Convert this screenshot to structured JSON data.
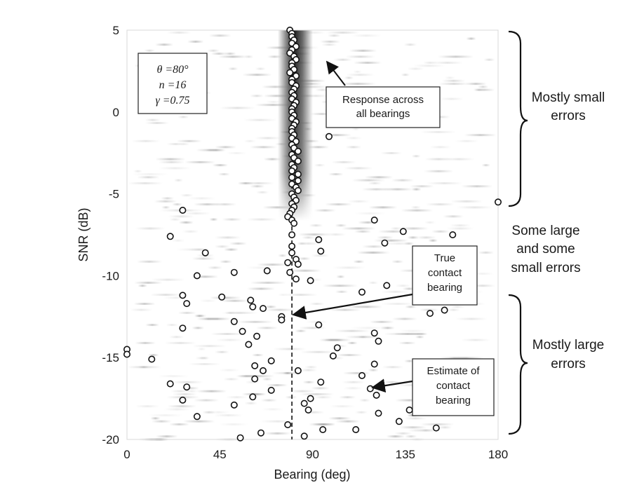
{
  "chart_data": {
    "type": "scatter",
    "xlabel": "Bearing (deg)",
    "ylabel": "SNR (dB)",
    "xlim": [
      0,
      180
    ],
    "ylim": [
      -20,
      5
    ],
    "xticks": [
      0,
      45,
      90,
      135,
      180
    ],
    "yticks": [
      5,
      0,
      -5,
      -10,
      -15,
      -20
    ],
    "true_bearing": 80,
    "params": [
      "θ =80°",
      "n =16",
      "γ =0.75"
    ],
    "annotations": {
      "response": "Response across all bearings",
      "true_bearing": "True contact bearing",
      "estimate": "Estimate of contact bearing"
    },
    "regions": [
      {
        "label": "Mostly small errors",
        "from": 5,
        "to": -5.7
      },
      {
        "label": "Some large and some small errors",
        "from": -5.7,
        "to": -11.3
      },
      {
        "label": "Mostly large errors",
        "from": -11.3,
        "to": -20
      }
    ],
    "points": [
      [
        79,
        5
      ],
      [
        80,
        4.8
      ],
      [
        80,
        4.6
      ],
      [
        81,
        4.4
      ],
      [
        80,
        4.2
      ],
      [
        82,
        4.0
      ],
      [
        80,
        3.8
      ],
      [
        79,
        3.6
      ],
      [
        81,
        3.4
      ],
      [
        82,
        3.2
      ],
      [
        80,
        3.0
      ],
      [
        80,
        2.8
      ],
      [
        81,
        2.6
      ],
      [
        79,
        2.4
      ],
      [
        82,
        2.2
      ],
      [
        80,
        2.0
      ],
      [
        80,
        1.8
      ],
      [
        82,
        1.6
      ],
      [
        81,
        1.4
      ],
      [
        80,
        1.2
      ],
      [
        81,
        1.0
      ],
      [
        80,
        0.8
      ],
      [
        82,
        0.6
      ],
      [
        81,
        0.4
      ],
      [
        80,
        0.2
      ],
      [
        80,
        0.0
      ],
      [
        81,
        -0.2
      ],
      [
        80,
        -0.4
      ],
      [
        82,
        -0.6
      ],
      [
        81,
        -0.8
      ],
      [
        80,
        -1.0
      ],
      [
        80,
        -1.2
      ],
      [
        81,
        -1.4
      ],
      [
        80,
        -1.6
      ],
      [
        82,
        -1.8
      ],
      [
        80,
        -2.0
      ],
      [
        81,
        -2.2
      ],
      [
        83,
        -2.4
      ],
      [
        80,
        -2.6
      ],
      [
        81,
        -2.8
      ],
      [
        83,
        -3.0
      ],
      [
        80,
        -3.2
      ],
      [
        81,
        -3.4
      ],
      [
        80,
        -3.6
      ],
      [
        83,
        -3.8
      ],
      [
        80,
        -4.0
      ],
      [
        83,
        -4.2
      ],
      [
        80,
        -4.4
      ],
      [
        82,
        -4.6
      ],
      [
        83,
        -4.8
      ],
      [
        80,
        -5.0
      ],
      [
        81,
        -5.2
      ],
      [
        82,
        -5.4
      ],
      [
        80,
        -5.6
      ],
      [
        81,
        -5.8
      ],
      [
        80,
        -6.0
      ],
      [
        79,
        -6.2
      ],
      [
        78,
        -6.4
      ],
      [
        80,
        -6.6
      ],
      [
        81,
        -6.8
      ],
      [
        80,
        -7.5
      ],
      [
        80,
        -8.2
      ],
      [
        80,
        -8.6
      ],
      [
        78,
        -9.2
      ],
      [
        82,
        -9.0
      ],
      [
        83,
        -9.3
      ],
      [
        79,
        -9.8
      ],
      [
        82,
        -10.2
      ],
      [
        89,
        -10.3
      ],
      [
        75,
        -12.5
      ],
      [
        75,
        -12.7
      ],
      [
        98,
        -1.5
      ],
      [
        180,
        -5.5
      ],
      [
        120,
        -6.6
      ],
      [
        27,
        -6
      ],
      [
        21,
        -7.6
      ],
      [
        38,
        -8.6
      ],
      [
        34,
        -10
      ],
      [
        52,
        -9.8
      ],
      [
        68,
        -9.7
      ],
      [
        93,
        -7.8
      ],
      [
        94,
        -8.5
      ],
      [
        125,
        -8
      ],
      [
        134,
        -7.3
      ],
      [
        158,
        -7.5
      ],
      [
        114,
        -11
      ],
      [
        126,
        -10.6
      ],
      [
        27,
        -11.2
      ],
      [
        29,
        -11.7
      ],
      [
        46,
        -11.3
      ],
      [
        60,
        -11.5
      ],
      [
        61,
        -11.9
      ],
      [
        66,
        -12
      ],
      [
        27,
        -13.2
      ],
      [
        52,
        -12.8
      ],
      [
        56,
        -13.4
      ],
      [
        63,
        -13.7
      ],
      [
        59,
        -14.2
      ],
      [
        93,
        -13
      ],
      [
        147,
        -12.3
      ],
      [
        154,
        -12.1
      ],
      [
        0,
        -14.5
      ],
      [
        0,
        -14.8
      ],
      [
        12,
        -15.1
      ],
      [
        62,
        -15.5
      ],
      [
        66,
        -15.8
      ],
      [
        70,
        -15.2
      ],
      [
        62,
        -16.3
      ],
      [
        94,
        -16.5
      ],
      [
        83,
        -15.8
      ],
      [
        102,
        -14.4
      ],
      [
        100,
        -14.9
      ],
      [
        120,
        -13.5
      ],
      [
        122,
        -14
      ],
      [
        120,
        -15.4
      ],
      [
        114,
        -16.1
      ],
      [
        118,
        -16.9
      ],
      [
        121,
        -17.3
      ],
      [
        21,
        -16.6
      ],
      [
        29,
        -16.8
      ],
      [
        27,
        -17.6
      ],
      [
        61,
        -17.4
      ],
      [
        70,
        -17
      ],
      [
        52,
        -17.9
      ],
      [
        86,
        -17.8
      ],
      [
        89,
        -17.5
      ],
      [
        88,
        -18.2
      ],
      [
        122,
        -18.4
      ],
      [
        137,
        -18.2
      ],
      [
        132,
        -18.9
      ],
      [
        150,
        -19.3
      ],
      [
        34,
        -18.6
      ],
      [
        78,
        -19.1
      ],
      [
        111,
        -19.4
      ],
      [
        65,
        -19.6
      ],
      [
        55,
        -19.9
      ],
      [
        86,
        -19.8
      ],
      [
        95,
        -19.4
      ]
    ]
  }
}
